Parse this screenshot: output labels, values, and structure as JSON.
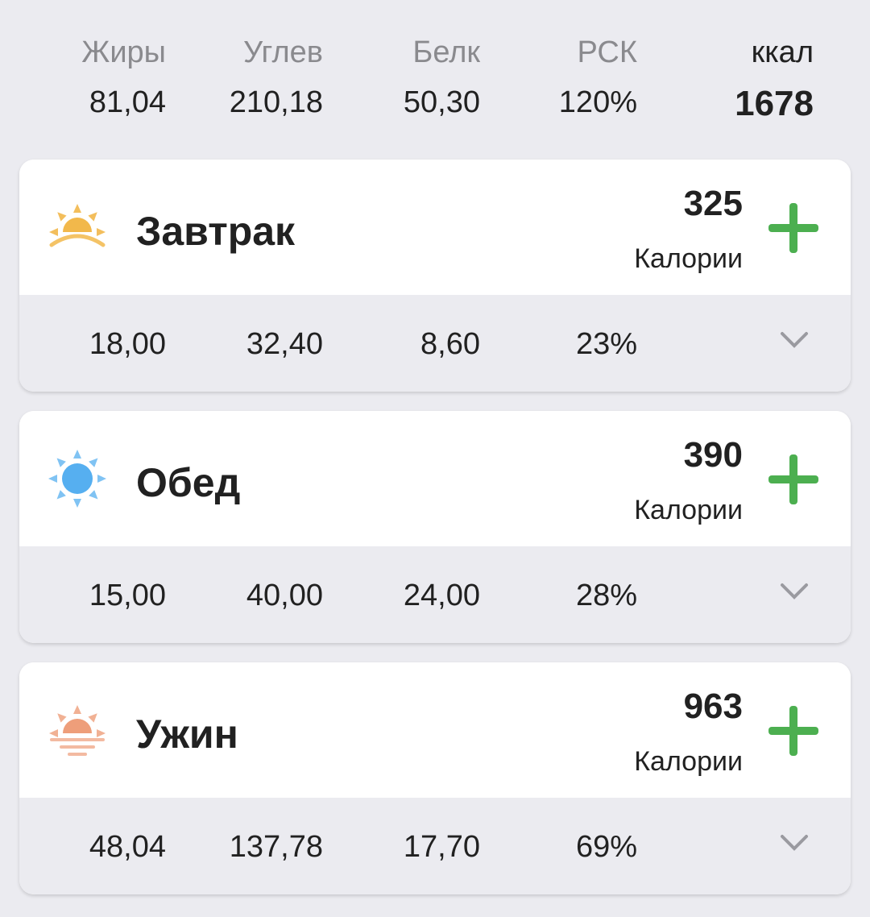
{
  "summary": {
    "columns": [
      {
        "label": "Жиры",
        "value": "81,04"
      },
      {
        "label": "Углев",
        "value": "210,18"
      },
      {
        "label": "Белк",
        "value": "50,30"
      },
      {
        "label": "РСК",
        "value": "120%"
      },
      {
        "label": "ккал",
        "value": "1678"
      }
    ]
  },
  "meals": [
    {
      "title": "Завтрак",
      "icon": "sunrise-icon",
      "calories": "325",
      "calories_label": "Калории",
      "fat": "18,00",
      "carbs": "32,40",
      "protein": "8,60",
      "rsk": "23%"
    },
    {
      "title": "Обед",
      "icon": "sun-icon",
      "calories": "390",
      "calories_label": "Калории",
      "fat": "15,00",
      "carbs": "40,00",
      "protein": "24,00",
      "rsk": "28%"
    },
    {
      "title": "Ужин",
      "icon": "sunset-icon",
      "calories": "963",
      "calories_label": "Калории",
      "fat": "48,04",
      "carbs": "137,78",
      "protein": "17,70",
      "rsk": "69%"
    }
  ],
  "colors": {
    "accent_plus": "#4caf50",
    "sunrise": "#f2b84b",
    "sun": "#56aff0",
    "sunset": "#ee9e7a"
  }
}
